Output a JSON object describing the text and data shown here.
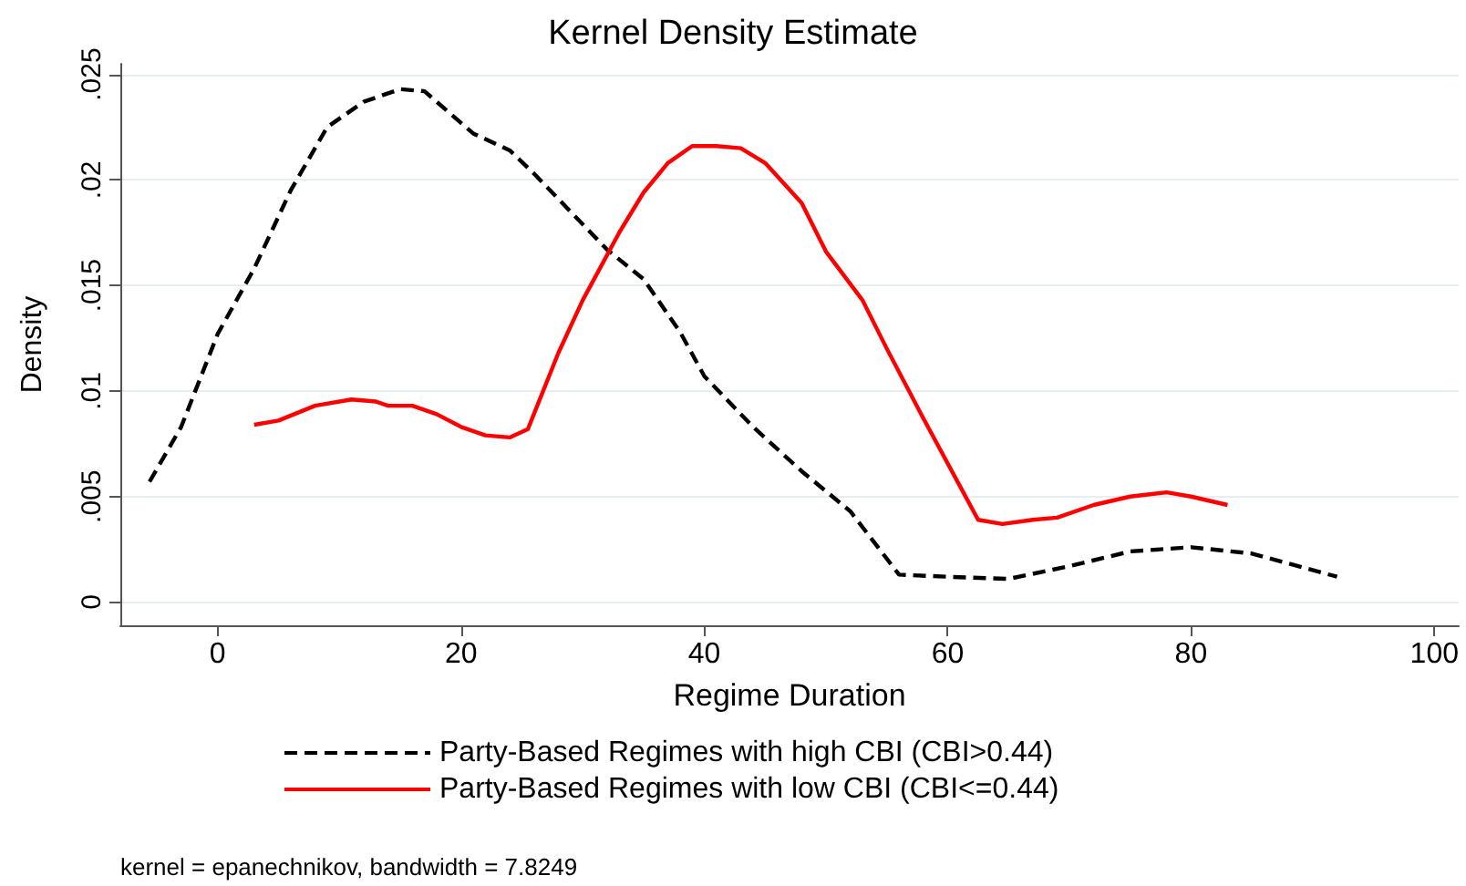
{
  "chart_data": {
    "type": "line",
    "title": "Kernel Density Estimate",
    "xlabel": "Regime Duration",
    "ylabel": "Density",
    "annotations": [
      "kernel = epanechnikov, bandwidth = 7.8249"
    ],
    "xlim": [
      -8,
      102
    ],
    "xticks": [
      0,
      20,
      40,
      60,
      80,
      100
    ],
    "ylim": [
      -0.0011,
      0.0255
    ],
    "yticks": [
      {
        "value": 0,
        "label": "0"
      },
      {
        "value": 0.005,
        "label": ".005"
      },
      {
        "value": 0.01,
        "label": ".01"
      },
      {
        "value": 0.015,
        "label": ".015"
      },
      {
        "value": 0.02,
        "label": ".02"
      },
      {
        "value": 0.025,
        "label": ".025"
      }
    ],
    "grid": "y",
    "legend": "bottom",
    "marker": "none",
    "series": [
      {
        "name": "Party-Based Regimes with high CBI (CBI>0.44)",
        "color": "#000000",
        "line_style": "dashed",
        "x": [
          -5.6,
          -3,
          0,
          3,
          6,
          9,
          12,
          15,
          17,
          19,
          21,
          24,
          26,
          29,
          32,
          35,
          38,
          40,
          44,
          48,
          52,
          56,
          60,
          65,
          70,
          75,
          80,
          85,
          92
        ],
        "values": [
          0.0057,
          0.0083,
          0.0127,
          0.0158,
          0.0195,
          0.0225,
          0.0237,
          0.0243,
          0.0242,
          0.0232,
          0.0222,
          0.0214,
          0.0203,
          0.0185,
          0.0167,
          0.0153,
          0.0128,
          0.0107,
          0.0083,
          0.0062,
          0.0043,
          0.0013,
          0.0012,
          0.0011,
          0.0017,
          0.0024,
          0.0026,
          0.0023,
          0.0012
        ]
      },
      {
        "name": "Party-Based Regimes with low CBI (CBI<=0.44)",
        "color": "#ff0000",
        "line_style": "solid",
        "x": [
          3,
          5,
          8,
          11,
          13,
          14,
          16,
          18,
          20,
          22,
          24,
          25.5,
          28,
          30,
          33,
          35,
          37,
          39,
          41,
          43,
          45,
          48,
          50,
          53,
          55,
          58,
          61,
          62.5,
          64.5,
          67,
          69,
          72,
          75,
          78,
          80,
          83
        ],
        "values": [
          0.0084,
          0.0086,
          0.0093,
          0.0096,
          0.0095,
          0.0093,
          0.0093,
          0.0089,
          0.0083,
          0.0079,
          0.0078,
          0.0082,
          0.0118,
          0.0143,
          0.0175,
          0.0194,
          0.0208,
          0.0216,
          0.0216,
          0.0215,
          0.0208,
          0.0189,
          0.0166,
          0.0143,
          0.012,
          0.0087,
          0.0055,
          0.0039,
          0.0037,
          0.0039,
          0.004,
          0.0046,
          0.005,
          0.0052,
          0.005,
          0.0046
        ]
      }
    ]
  }
}
